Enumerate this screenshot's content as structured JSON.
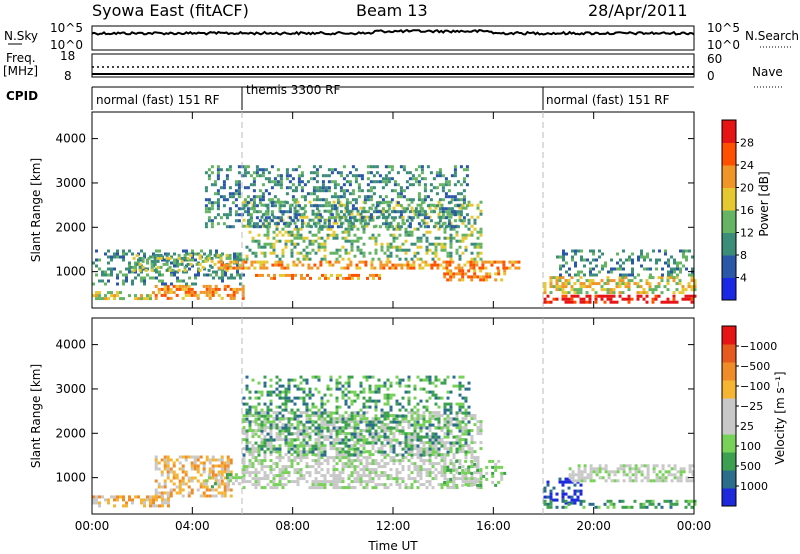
{
  "header": {
    "station": "Syowa East (fitACF)",
    "beam": "Beam 13",
    "date": "28/Apr/2011"
  },
  "top_panels": {
    "nsky_label": "N.Sky",
    "nsky_ticks": [
      "10^5",
      "10^0"
    ],
    "nsearch_label": "N.Search",
    "nsearch_ticks": [
      "10^5",
      "10^0"
    ],
    "freq_label_1": "Freq.",
    "freq_label_2": "[MHz]",
    "freq_ticks": [
      "18",
      "8"
    ],
    "nave_label": "Nave",
    "nave_ticks": [
      "60",
      "0"
    ],
    "cpid_label": "CPID",
    "cpid_segments": [
      {
        "label": "normal (fast) 151 RF",
        "start_hour": 0,
        "end_hour": 6
      },
      {
        "label": "themis 3300 RF",
        "start_hour": 6,
        "end_hour": 18
      },
      {
        "label": "normal (fast) 151 RF",
        "start_hour": 18,
        "end_hour": 24
      }
    ]
  },
  "chart_data": [
    {
      "type": "heatmap",
      "title": "",
      "xlabel": "",
      "ylabel": "Slant Range [km]",
      "xlim_hours": [
        0,
        24
      ],
      "ylim": [
        180,
        4600
      ],
      "y_ticks": [
        1000,
        2000,
        3000,
        4000
      ],
      "colorbar": {
        "label": "Power [dB]",
        "ticks": [
          "4",
          "8",
          "12",
          "16",
          "20",
          "24",
          "28"
        ],
        "colors": [
          "#1a28e6",
          "#2b57a8",
          "#3c8c7a",
          "#64b464",
          "#e6c832",
          "#f09628",
          "#ff5000",
          "#e61414"
        ]
      },
      "regions": [
        {
          "x0": 0.0,
          "x1": 2.5,
          "y0": 380,
          "y1": 560,
          "level": 4
        },
        {
          "x0": 2.5,
          "x1": 6.0,
          "y0": 400,
          "y1": 700,
          "level": 5
        },
        {
          "x0": 0.0,
          "x1": 6.0,
          "y0": 700,
          "y1": 1500,
          "level": 2
        },
        {
          "x0": 1.5,
          "x1": 5.5,
          "y0": 1000,
          "y1": 1400,
          "level": 3
        },
        {
          "x0": 5.0,
          "x1": 17.0,
          "y0": 1100,
          "y1": 1250,
          "level": 5
        },
        {
          "x0": 6.5,
          "x1": 11.5,
          "y0": 850,
          "y1": 950,
          "level": 5
        },
        {
          "x0": 14.0,
          "x1": 16.5,
          "y0": 800,
          "y1": 1050,
          "level": 5
        },
        {
          "x0": 6.0,
          "x1": 15.5,
          "y0": 1300,
          "y1": 2600,
          "level": 3
        },
        {
          "x0": 4.5,
          "x1": 15.0,
          "y0": 2000,
          "y1": 3400,
          "level": 2
        },
        {
          "x0": 18.0,
          "x1": 24.0,
          "y0": 300,
          "y1": 480,
          "level": 7
        },
        {
          "x0": 18.0,
          "x1": 24.0,
          "y0": 500,
          "y1": 900,
          "level": 4
        },
        {
          "x0": 18.5,
          "x1": 24.0,
          "y0": 900,
          "y1": 1500,
          "level": 2
        }
      ]
    },
    {
      "type": "heatmap",
      "title": "",
      "xlabel": "Time UT",
      "ylabel": "Slant Range [km]",
      "xlim_hours": [
        0,
        24
      ],
      "ylim": [
        180,
        4600
      ],
      "y_ticks": [
        1000,
        2000,
        3000,
        4000
      ],
      "x_ticks": [
        "00:00",
        "04:00",
        "08:00",
        "12:00",
        "16:00",
        "20:00",
        "00:00"
      ],
      "colorbar": {
        "label": "Velocity [m s⁻¹]",
        "ticks": [
          "1000",
          "500",
          "100",
          "25",
          "−25",
          "−100",
          "−500",
          "−1000"
        ],
        "colors": [
          "#1e28dc",
          "#2a6e8c",
          "#3ca050",
          "#78d25a",
          "#c8c8c8",
          "#c8c8c8",
          "#f5b432",
          "#f08c28",
          "#e65a1e",
          "#e61414"
        ]
      },
      "regions": [
        {
          "x0": 0.0,
          "x1": 3.0,
          "y0": 350,
          "y1": 600,
          "level": 6
        },
        {
          "x0": 2.5,
          "x1": 5.5,
          "y0": 600,
          "y1": 1500,
          "level": 6
        },
        {
          "x0": 4.5,
          "x1": 6.0,
          "y0": 800,
          "y1": 1100,
          "level": 3
        },
        {
          "x0": 6.0,
          "x1": 15.5,
          "y0": 800,
          "y1": 2500,
          "level": 4
        },
        {
          "x0": 6.0,
          "x1": 15.0,
          "y0": 1500,
          "y1": 3300,
          "level": 2
        },
        {
          "x0": 14.0,
          "x1": 16.5,
          "y0": 800,
          "y1": 1400,
          "level": 3
        },
        {
          "x0": 18.0,
          "x1": 19.5,
          "y0": 450,
          "y1": 1000,
          "level": 0
        },
        {
          "x0": 18.0,
          "x1": 24.0,
          "y0": 300,
          "y1": 500,
          "level": 2
        },
        {
          "x0": 19.0,
          "x1": 24.0,
          "y0": 900,
          "y1": 1300,
          "level": 4
        }
      ]
    }
  ]
}
